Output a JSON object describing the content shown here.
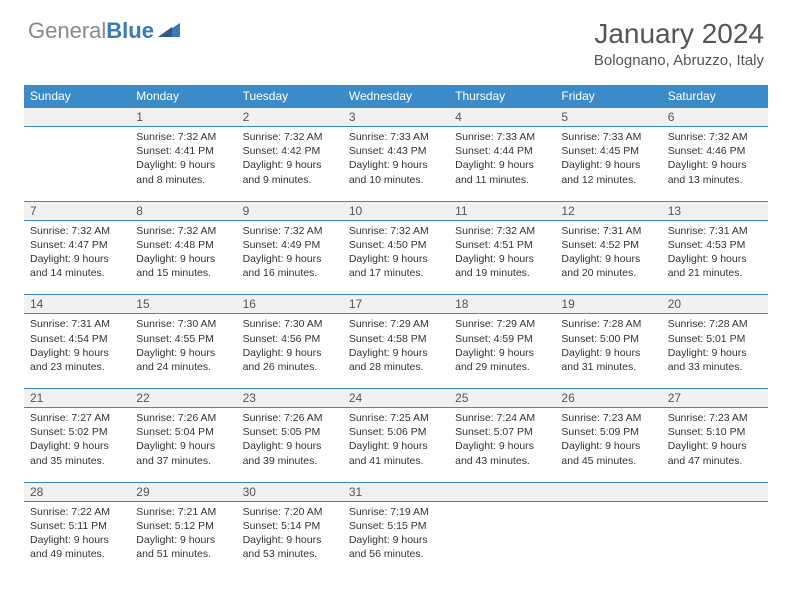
{
  "logo": {
    "general": "General",
    "blue": "Blue"
  },
  "title": "January 2024",
  "location": "Bolognano, Abruzzo, Italy",
  "colors": {
    "header_bg": "#3b8bc9",
    "header_text": "#ffffff",
    "daynum_bg": "#f1f1f1",
    "border": "#3b8bc9",
    "logo_gray": "#888888",
    "logo_blue": "#3a7ab8"
  },
  "weekdays": [
    "Sunday",
    "Monday",
    "Tuesday",
    "Wednesday",
    "Thursday",
    "Friday",
    "Saturday"
  ],
  "weeks": [
    {
      "nums": [
        "",
        "1",
        "2",
        "3",
        "4",
        "5",
        "6"
      ],
      "cells": [
        null,
        {
          "sunrise": "Sunrise: 7:32 AM",
          "sunset": "Sunset: 4:41 PM",
          "day1": "Daylight: 9 hours",
          "day2": "and 8 minutes."
        },
        {
          "sunrise": "Sunrise: 7:32 AM",
          "sunset": "Sunset: 4:42 PM",
          "day1": "Daylight: 9 hours",
          "day2": "and 9 minutes."
        },
        {
          "sunrise": "Sunrise: 7:33 AM",
          "sunset": "Sunset: 4:43 PM",
          "day1": "Daylight: 9 hours",
          "day2": "and 10 minutes."
        },
        {
          "sunrise": "Sunrise: 7:33 AM",
          "sunset": "Sunset: 4:44 PM",
          "day1": "Daylight: 9 hours",
          "day2": "and 11 minutes."
        },
        {
          "sunrise": "Sunrise: 7:33 AM",
          "sunset": "Sunset: 4:45 PM",
          "day1": "Daylight: 9 hours",
          "day2": "and 12 minutes."
        },
        {
          "sunrise": "Sunrise: 7:32 AM",
          "sunset": "Sunset: 4:46 PM",
          "day1": "Daylight: 9 hours",
          "day2": "and 13 minutes."
        }
      ]
    },
    {
      "nums": [
        "7",
        "8",
        "9",
        "10",
        "11",
        "12",
        "13"
      ],
      "cells": [
        {
          "sunrise": "Sunrise: 7:32 AM",
          "sunset": "Sunset: 4:47 PM",
          "day1": "Daylight: 9 hours",
          "day2": "and 14 minutes."
        },
        {
          "sunrise": "Sunrise: 7:32 AM",
          "sunset": "Sunset: 4:48 PM",
          "day1": "Daylight: 9 hours",
          "day2": "and 15 minutes."
        },
        {
          "sunrise": "Sunrise: 7:32 AM",
          "sunset": "Sunset: 4:49 PM",
          "day1": "Daylight: 9 hours",
          "day2": "and 16 minutes."
        },
        {
          "sunrise": "Sunrise: 7:32 AM",
          "sunset": "Sunset: 4:50 PM",
          "day1": "Daylight: 9 hours",
          "day2": "and 17 minutes."
        },
        {
          "sunrise": "Sunrise: 7:32 AM",
          "sunset": "Sunset: 4:51 PM",
          "day1": "Daylight: 9 hours",
          "day2": "and 19 minutes."
        },
        {
          "sunrise": "Sunrise: 7:31 AM",
          "sunset": "Sunset: 4:52 PM",
          "day1": "Daylight: 9 hours",
          "day2": "and 20 minutes."
        },
        {
          "sunrise": "Sunrise: 7:31 AM",
          "sunset": "Sunset: 4:53 PM",
          "day1": "Daylight: 9 hours",
          "day2": "and 21 minutes."
        }
      ]
    },
    {
      "nums": [
        "14",
        "15",
        "16",
        "17",
        "18",
        "19",
        "20"
      ],
      "cells": [
        {
          "sunrise": "Sunrise: 7:31 AM",
          "sunset": "Sunset: 4:54 PM",
          "day1": "Daylight: 9 hours",
          "day2": "and 23 minutes."
        },
        {
          "sunrise": "Sunrise: 7:30 AM",
          "sunset": "Sunset: 4:55 PM",
          "day1": "Daylight: 9 hours",
          "day2": "and 24 minutes."
        },
        {
          "sunrise": "Sunrise: 7:30 AM",
          "sunset": "Sunset: 4:56 PM",
          "day1": "Daylight: 9 hours",
          "day2": "and 26 minutes."
        },
        {
          "sunrise": "Sunrise: 7:29 AM",
          "sunset": "Sunset: 4:58 PM",
          "day1": "Daylight: 9 hours",
          "day2": "and 28 minutes."
        },
        {
          "sunrise": "Sunrise: 7:29 AM",
          "sunset": "Sunset: 4:59 PM",
          "day1": "Daylight: 9 hours",
          "day2": "and 29 minutes."
        },
        {
          "sunrise": "Sunrise: 7:28 AM",
          "sunset": "Sunset: 5:00 PM",
          "day1": "Daylight: 9 hours",
          "day2": "and 31 minutes."
        },
        {
          "sunrise": "Sunrise: 7:28 AM",
          "sunset": "Sunset: 5:01 PM",
          "day1": "Daylight: 9 hours",
          "day2": "and 33 minutes."
        }
      ]
    },
    {
      "nums": [
        "21",
        "22",
        "23",
        "24",
        "25",
        "26",
        "27"
      ],
      "cells": [
        {
          "sunrise": "Sunrise: 7:27 AM",
          "sunset": "Sunset: 5:02 PM",
          "day1": "Daylight: 9 hours",
          "day2": "and 35 minutes."
        },
        {
          "sunrise": "Sunrise: 7:26 AM",
          "sunset": "Sunset: 5:04 PM",
          "day1": "Daylight: 9 hours",
          "day2": "and 37 minutes."
        },
        {
          "sunrise": "Sunrise: 7:26 AM",
          "sunset": "Sunset: 5:05 PM",
          "day1": "Daylight: 9 hours",
          "day2": "and 39 minutes."
        },
        {
          "sunrise": "Sunrise: 7:25 AM",
          "sunset": "Sunset: 5:06 PM",
          "day1": "Daylight: 9 hours",
          "day2": "and 41 minutes."
        },
        {
          "sunrise": "Sunrise: 7:24 AM",
          "sunset": "Sunset: 5:07 PM",
          "day1": "Daylight: 9 hours",
          "day2": "and 43 minutes."
        },
        {
          "sunrise": "Sunrise: 7:23 AM",
          "sunset": "Sunset: 5:09 PM",
          "day1": "Daylight: 9 hours",
          "day2": "and 45 minutes."
        },
        {
          "sunrise": "Sunrise: 7:23 AM",
          "sunset": "Sunset: 5:10 PM",
          "day1": "Daylight: 9 hours",
          "day2": "and 47 minutes."
        }
      ]
    },
    {
      "nums": [
        "28",
        "29",
        "30",
        "31",
        "",
        "",
        ""
      ],
      "cells": [
        {
          "sunrise": "Sunrise: 7:22 AM",
          "sunset": "Sunset: 5:11 PM",
          "day1": "Daylight: 9 hours",
          "day2": "and 49 minutes."
        },
        {
          "sunrise": "Sunrise: 7:21 AM",
          "sunset": "Sunset: 5:12 PM",
          "day1": "Daylight: 9 hours",
          "day2": "and 51 minutes."
        },
        {
          "sunrise": "Sunrise: 7:20 AM",
          "sunset": "Sunset: 5:14 PM",
          "day1": "Daylight: 9 hours",
          "day2": "and 53 minutes."
        },
        {
          "sunrise": "Sunrise: 7:19 AM",
          "sunset": "Sunset: 5:15 PM",
          "day1": "Daylight: 9 hours",
          "day2": "and 56 minutes."
        },
        null,
        null,
        null
      ]
    }
  ]
}
